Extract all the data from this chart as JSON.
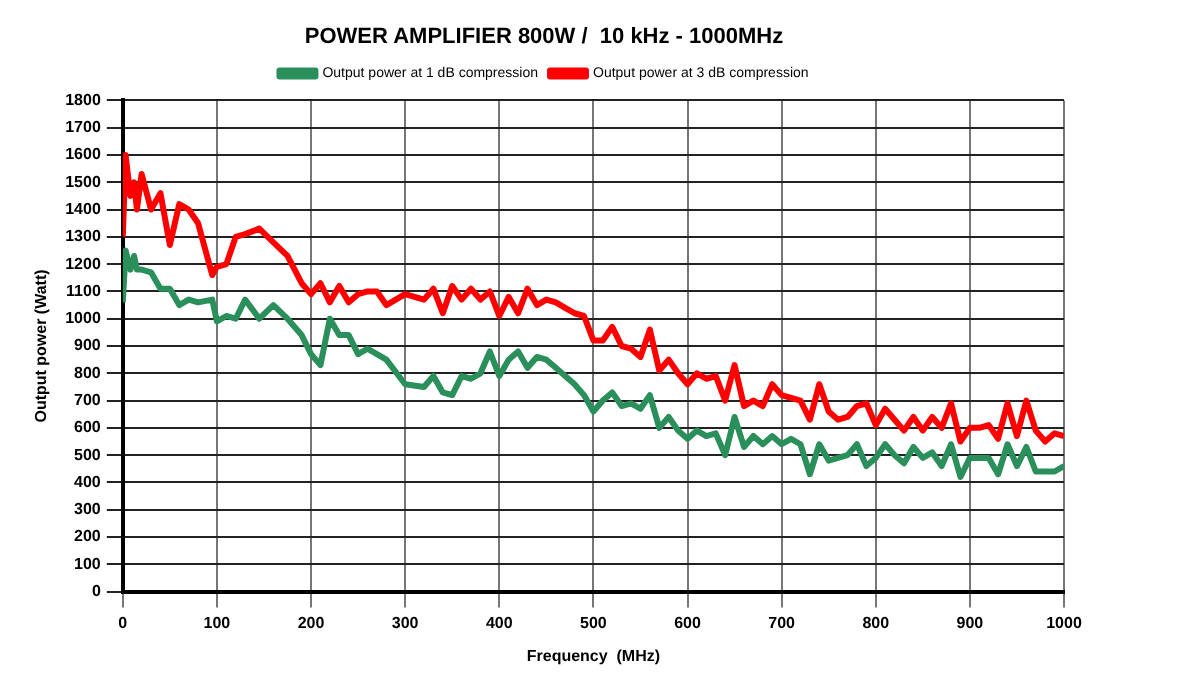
{
  "chart_data": {
    "type": "line",
    "title": "POWER AMPLIFIER 800W /  10 kHz - 1000MHz",
    "xlabel": "Frequency  (MHz)",
    "ylabel": "Output power (Watt)",
    "x": [
      0,
      3,
      8,
      12,
      15,
      20,
      30,
      40,
      50,
      60,
      70,
      80,
      95,
      100,
      110,
      120,
      130,
      145,
      160,
      175,
      190,
      200,
      210,
      220,
      230,
      240,
      250,
      260,
      270,
      280,
      300,
      320,
      330,
      340,
      350,
      360,
      370,
      380,
      390,
      400,
      410,
      420,
      430,
      440,
      450,
      460,
      470,
      480,
      490,
      500,
      510,
      520,
      530,
      540,
      550,
      560,
      570,
      580,
      590,
      600,
      610,
      620,
      630,
      640,
      650,
      660,
      670,
      680,
      690,
      700,
      710,
      720,
      730,
      740,
      750,
      760,
      770,
      780,
      790,
      800,
      810,
      820,
      830,
      840,
      850,
      860,
      870,
      880,
      890,
      900,
      910,
      920,
      930,
      940,
      950,
      960,
      970,
      980,
      990,
      1000
    ],
    "series": [
      {
        "name": "Output power at 1 dB compression",
        "color": "#2a8f5a",
        "values": [
          1060,
          1250,
          1180,
          1230,
          1180,
          1180,
          1170,
          1110,
          1110,
          1050,
          1070,
          1060,
          1070,
          990,
          1010,
          1000,
          1070,
          1000,
          1050,
          1000,
          940,
          870,
          830,
          1000,
          940,
          940,
          870,
          890,
          870,
          850,
          760,
          750,
          790,
          730,
          720,
          790,
          780,
          800,
          880,
          790,
          850,
          880,
          820,
          860,
          850,
          820,
          790,
          760,
          720,
          660,
          700,
          730,
          680,
          690,
          670,
          720,
          600,
          640,
          590,
          560,
          590,
          570,
          580,
          500,
          640,
          530,
          570,
          540,
          570,
          540,
          560,
          540,
          430,
          540,
          480,
          490,
          500,
          540,
          460,
          490,
          540,
          500,
          470,
          530,
          490,
          510,
          460,
          540,
          420,
          490,
          490,
          490,
          430,
          540,
          460,
          530,
          440,
          440,
          440,
          460
        ]
      },
      {
        "name": "Output power at 3 dB compression",
        "color": "#ff0000",
        "values": [
          1300,
          1600,
          1450,
          1500,
          1400,
          1530,
          1400,
          1460,
          1270,
          1420,
          1400,
          1350,
          1160,
          1190,
          1200,
          1300,
          1310,
          1330,
          1280,
          1230,
          1130,
          1090,
          1130,
          1060,
          1120,
          1060,
          1090,
          1100,
          1100,
          1050,
          1090,
          1070,
          1110,
          1020,
          1120,
          1070,
          1110,
          1070,
          1100,
          1010,
          1080,
          1020,
          1110,
          1050,
          1070,
          1060,
          1040,
          1020,
          1010,
          920,
          920,
          970,
          900,
          890,
          860,
          960,
          810,
          850,
          800,
          760,
          800,
          780,
          790,
          700,
          830,
          680,
          700,
          680,
          760,
          720,
          710,
          700,
          630,
          760,
          660,
          630,
          640,
          680,
          690,
          610,
          670,
          630,
          590,
          640,
          590,
          640,
          600,
          690,
          550,
          600,
          600,
          610,
          560,
          690,
          570,
          700,
          590,
          550,
          580,
          570
        ]
      }
    ],
    "xlim": [
      0,
      1000
    ],
    "xticks": [
      0,
      100,
      200,
      300,
      400,
      500,
      600,
      700,
      800,
      900,
      1000
    ],
    "ylim": [
      0,
      1800
    ],
    "yticks": [
      0,
      100,
      200,
      300,
      400,
      500,
      600,
      700,
      800,
      900,
      1000,
      1100,
      1200,
      1300,
      1400,
      1500,
      1600,
      1700,
      1800
    ],
    "grid": true,
    "legend": "top",
    "marker": "none",
    "line_style": "solid"
  }
}
